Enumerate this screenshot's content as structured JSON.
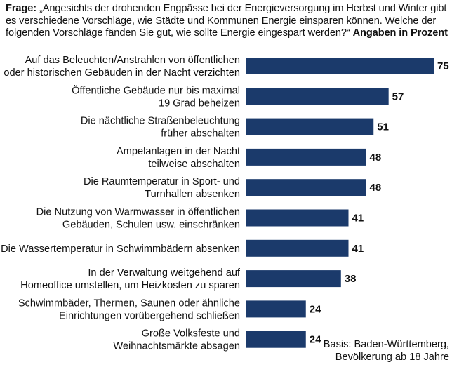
{
  "header": {
    "question_label": "Frage:",
    "question_text": "„Angesichts der drohenden Engpässe bei der Energieversorgung im Herbst und Winter gibt es verschiedene Vorschläge, wie Städte und Kommunen Energie einsparen können. Welche der folgenden Vorschläge fänden Sie gut, wie sollte Energie eingespart werden?“",
    "unit_note": "Angaben in Prozent"
  },
  "footer": {
    "basis_line1": "Basis: Baden-Württemberg,",
    "basis_line2": "Bevölkerung ab 18 Jahre"
  },
  "colors": {
    "bar": "#1b3a6b"
  },
  "chart_data": {
    "type": "bar",
    "orientation": "horizontal",
    "categories": [
      [
        "Auf das Beleuchten/Anstrahlen von öffentlichen",
        "oder historischen Gebäuden in der Nacht verzichten"
      ],
      [
        "Öffentliche Gebäude nur bis maximal",
        "19 Grad beheizen"
      ],
      [
        "Die nächtliche Straßenbeleuchtung",
        "früher abschalten"
      ],
      [
        "Ampelanlagen in der Nacht",
        "teilweise abschalten"
      ],
      [
        "Die Raumtemperatur in Sport- und",
        "Turnhallen absenken"
      ],
      [
        "Die Nutzung von Warmwasser in öffentlichen",
        "Gebäuden, Schulen usw. einschränken"
      ],
      [
        "Die Wassertemperatur in Schwimmbädern absenken"
      ],
      [
        "In der Verwaltung weitgehend auf",
        "Homeoffice umstellen, um Heizkosten zu sparen"
      ],
      [
        "Schwimmbäder, Thermen, Saunen oder ähnliche",
        "Einrichtungen vorübergehend schließen"
      ],
      [
        "Große Volksfeste und",
        "Weihnachtsmärkte absagen"
      ]
    ],
    "values": [
      75,
      57,
      51,
      48,
      48,
      41,
      41,
      38,
      24,
      24
    ],
    "xlim": [
      0,
      75
    ],
    "grid": false,
    "legend": "none"
  }
}
